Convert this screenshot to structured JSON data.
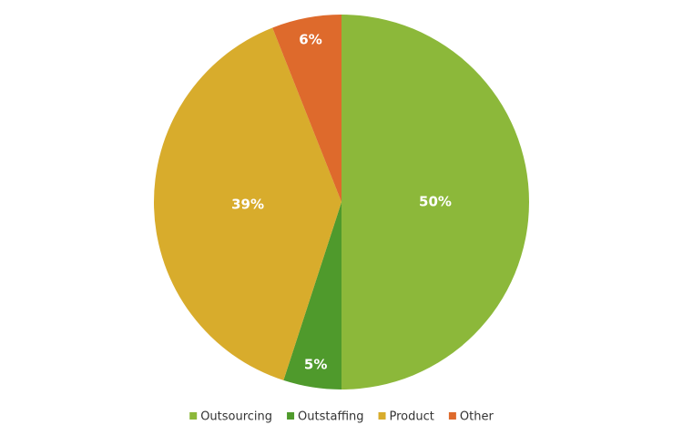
{
  "chart_data": {
    "type": "pie",
    "categories": [
      "Outsourcing",
      "Outstaffing",
      "Product",
      "Other"
    ],
    "values": [
      50,
      5,
      39,
      6
    ],
    "value_labels": [
      "50%",
      "5%",
      "39%",
      "6%"
    ],
    "colors": [
      "#8cb83a",
      "#4f9a2c",
      "#d8ac2c",
      "#de6a2c"
    ],
    "legend": "bottom"
  }
}
